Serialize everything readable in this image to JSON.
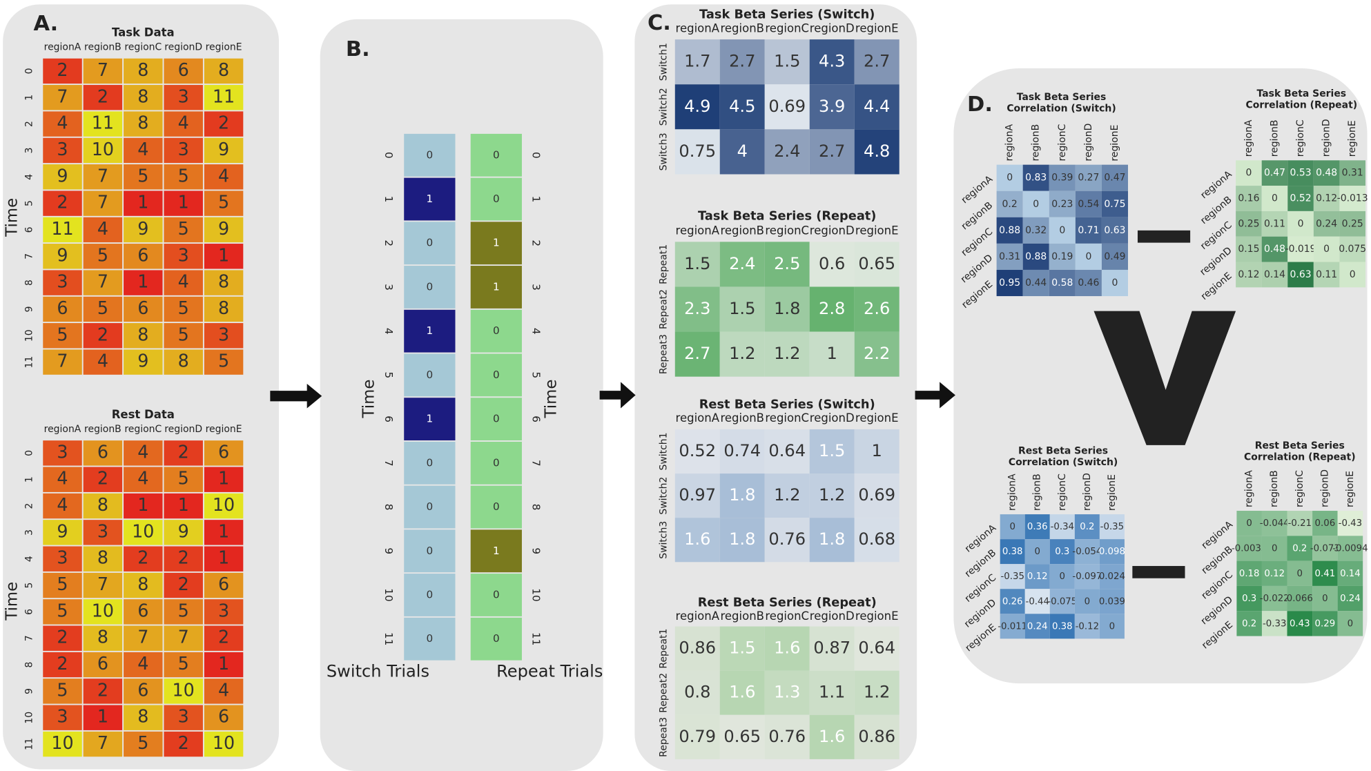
{
  "panels": {
    "a": {
      "label": "A.",
      "heatmaps": [
        {
          "title": "Task Data",
          "y_label": "Time",
          "columns": [
            "regionA",
            "regionB",
            "regionC",
            "regionD",
            "regionE"
          ],
          "rows": [
            "0",
            "1",
            "2",
            "3",
            "4",
            "5",
            "6",
            "7",
            "8",
            "9",
            "10",
            "11"
          ],
          "values": [
            [
              2,
              7,
              8,
              6,
              8
            ],
            [
              7,
              2,
              8,
              3,
              11
            ],
            [
              4,
              11,
              8,
              4,
              2
            ],
            [
              3,
              10,
              4,
              3,
              9
            ],
            [
              9,
              7,
              5,
              5,
              4
            ],
            [
              2,
              7,
              1,
              1,
              5
            ],
            [
              11,
              4,
              9,
              5,
              9
            ],
            [
              9,
              5,
              6,
              3,
              1
            ],
            [
              3,
              7,
              1,
              4,
              8
            ],
            [
              6,
              5,
              6,
              5,
              8
            ],
            [
              5,
              2,
              8,
              5,
              3
            ],
            [
              7,
              4,
              9,
              8,
              5
            ]
          ],
          "colors": [
            "#e3271f",
            "#e3891f",
            "#e3e31f"
          ]
        },
        {
          "title": "Rest Data",
          "y_label": "Time",
          "columns": [
            "regionA",
            "regionB",
            "regionC",
            "regionD",
            "regionE"
          ],
          "rows": [
            "0",
            "1",
            "2",
            "3",
            "4",
            "5",
            "6",
            "7",
            "8",
            "9",
            "10",
            "11"
          ],
          "values": [
            [
              3,
              6,
              4,
              2,
              6
            ],
            [
              4,
              2,
              4,
              5,
              1
            ],
            [
              4,
              8,
              1,
              1,
              10
            ],
            [
              9,
              3,
              10,
              9,
              1
            ],
            [
              3,
              8,
              2,
              2,
              1
            ],
            [
              5,
              7,
              8,
              2,
              6
            ],
            [
              5,
              10,
              6,
              5,
              3
            ],
            [
              2,
              8,
              7,
              7,
              2
            ],
            [
              2,
              6,
              4,
              5,
              1
            ],
            [
              5,
              2,
              6,
              10,
              4
            ],
            [
              3,
              1,
              8,
              3,
              6
            ],
            [
              10,
              7,
              5,
              2,
              10
            ]
          ],
          "colors": [
            "#e3271f",
            "#e3891f",
            "#e3e31f"
          ]
        }
      ]
    },
    "b": {
      "label": "B.",
      "heatmaps": [
        {
          "x_label": "Switch Trials",
          "y_label": "Time",
          "rows": [
            "0",
            "1",
            "2",
            "3",
            "4",
            "5",
            "6",
            "7",
            "8",
            "9",
            "10",
            "11"
          ],
          "values": [
            [
              0
            ],
            [
              1
            ],
            [
              0
            ],
            [
              0
            ],
            [
              1
            ],
            [
              0
            ],
            [
              1
            ],
            [
              0
            ],
            [
              0
            ],
            [
              0
            ],
            [
              0
            ],
            [
              0
            ]
          ],
          "colors": [
            "#a5c8d6",
            "#1c1c80"
          ]
        },
        {
          "x_label": "Repeat Trials",
          "y_label": "Time",
          "rows": [
            "0",
            "1",
            "2",
            "3",
            "4",
            "5",
            "6",
            "7",
            "8",
            "9",
            "10",
            "11"
          ],
          "values": [
            [
              0
            ],
            [
              0
            ],
            [
              1
            ],
            [
              1
            ],
            [
              0
            ],
            [
              0
            ],
            [
              0
            ],
            [
              0
            ],
            [
              0
            ],
            [
              1
            ],
            [
              0
            ],
            [
              0
            ]
          ],
          "colors": [
            "#8dd88d",
            "#7a7a1e"
          ]
        }
      ]
    },
    "c": {
      "label": "C.",
      "heatmaps": [
        {
          "title": "Task Beta Series (Switch)",
          "columns": [
            "regionA",
            "regionB",
            "regionC",
            "regionD",
            "regionE"
          ],
          "rows": [
            "Switch1",
            "Switch2",
            "Switch3"
          ],
          "values": [
            [
              1.7,
              2.7,
              1.5,
              4.3,
              2.7
            ],
            [
              4.9,
              4.5,
              0.69,
              3.9,
              4.4
            ],
            [
              0.75,
              4,
              2.4,
              2.7,
              4.8
            ]
          ],
          "colors": [
            "#dde4ec",
            "#1f3f77"
          ]
        },
        {
          "title": "Task Beta Series (Repeat)",
          "columns": [
            "regionA",
            "regionB",
            "regionC",
            "regionD",
            "regionE"
          ],
          "rows": [
            "Repeat1",
            "Repeat2",
            "Repeat3"
          ],
          "values": [
            [
              1.5,
              2.4,
              2.5,
              0.6,
              0.65
            ],
            [
              2.3,
              1.5,
              1.8,
              2.8,
              2.6
            ],
            [
              2.7,
              1.2,
              1.2,
              1,
              2.2
            ]
          ],
          "colors": [
            "#dde7dc",
            "#66b26f"
          ]
        },
        {
          "title": "Rest Beta Series (Switch)",
          "columns": [
            "regionA",
            "regionB",
            "regionC",
            "regionD",
            "regionE"
          ],
          "rows": [
            "Switch1",
            "Switch2",
            "Switch3"
          ],
          "values": [
            [
              0.52,
              0.74,
              0.64,
              1.5,
              1
            ],
            [
              0.97,
              1.8,
              1.2,
              1.2,
              0.69
            ],
            [
              1.6,
              1.8,
              0.76,
              1.8,
              0.68
            ]
          ],
          "colors": [
            "#dde2ea",
            "#a8bed7"
          ]
        },
        {
          "title": "Rest Beta Series (Repeat)",
          "columns": [
            "regionA",
            "regionB",
            "regionC",
            "regionD",
            "regionE"
          ],
          "rows": [
            "Repeat1",
            "Repeat2",
            "Repeat3"
          ],
          "values": [
            [
              0.86,
              1.5,
              1.6,
              0.87,
              0.64
            ],
            [
              0.8,
              1.6,
              1.3,
              1.1,
              1.2
            ],
            [
              0.79,
              0.65,
              0.76,
              1.6,
              0.86
            ]
          ],
          "colors": [
            "#e0e6dc",
            "#b7d6b2"
          ]
        }
      ]
    },
    "d": {
      "label": "D.",
      "heatmaps": [
        {
          "title": [
            "Task Beta Series",
            "Correlation (Switch)"
          ],
          "columns": [
            "regionA",
            "regionB",
            "regionC",
            "regionD",
            "regionE"
          ],
          "rows": [
            "regionA",
            "regionB",
            "regionC",
            "regionD",
            "regionE"
          ],
          "values": [
            [
              0,
              0.83,
              0.39,
              0.27,
              0.47
            ],
            [
              0.2,
              0,
              0.23,
              0.54,
              0.75
            ],
            [
              0.88,
              0.32,
              0,
              0.71,
              0.63
            ],
            [
              0.31,
              0.88,
              0.19,
              0,
              0.49
            ],
            [
              0.95,
              0.44,
              0.58,
              0.46,
              0
            ]
          ],
          "colors": [
            "#b3cde3",
            "#1f3f77"
          ]
        },
        {
          "title": [
            "Task Beta Series",
            "Correlation (Repeat)"
          ],
          "columns": [
            "regionA",
            "regionB",
            "regionC",
            "regionD",
            "regionE"
          ],
          "rows": [
            "regionA",
            "regionB",
            "regionC",
            "regionD",
            "regionE"
          ],
          "values": [
            [
              0,
              0.47,
              0.53,
              0.48,
              0.31
            ],
            [
              0.16,
              0,
              0.52,
              0.12,
              -0.013
            ],
            [
              0.25,
              0.11,
              0,
              0.24,
              0.25
            ],
            [
              0.15,
              0.48,
              -0.019,
              0,
              0.075
            ],
            [
              0.12,
              0.14,
              0.63,
              0.11,
              0
            ]
          ],
          "colors": [
            "#d6ebcf",
            "#2d7c49"
          ]
        },
        {
          "title": [
            "Rest Beta Series",
            "Correlation (Switch)"
          ],
          "columns": [
            "regionA",
            "regionB",
            "regionC",
            "regionD",
            "regionE"
          ],
          "rows": [
            "regionA",
            "regionB",
            "regionC",
            "regionD",
            "regionE"
          ],
          "values": [
            [
              0,
              0.36,
              -0.34,
              0.2,
              -0.35
            ],
            [
              0.38,
              0,
              0.3,
              -0.054,
              0.098
            ],
            [
              -0.35,
              0.12,
              0,
              -0.097,
              0.024
            ],
            [
              0.26,
              -0.44,
              -0.075,
              0,
              0.039
            ],
            [
              -0.011,
              0.24,
              0.38,
              -0.12,
              0
            ]
          ],
          "colors": [
            "#d7e3ef",
            "#3a78b6"
          ]
        },
        {
          "title": [
            "Rest Beta Series",
            "Correlation (Repeat)"
          ],
          "columns": [
            "regionA",
            "regionB",
            "regionC",
            "regionD",
            "regionE"
          ],
          "rows": [
            "regionA",
            "regionB",
            "regionC",
            "regionD",
            "regionE"
          ],
          "values": [
            [
              0,
              -0.044,
              -0.21,
              0.06,
              -0.43
            ],
            [
              -0.0035,
              0,
              0.2,
              -0.073,
              -0.0094
            ],
            [
              0.18,
              0.12,
              0,
              0.41,
              0.14
            ],
            [
              0.3,
              -0.022,
              0.066,
              0,
              0.24
            ],
            [
              0.2,
              -0.33,
              0.43,
              0.29,
              0
            ]
          ],
          "colors": [
            "#dfeed7",
            "#2a8a4a"
          ]
        }
      ]
    }
  }
}
